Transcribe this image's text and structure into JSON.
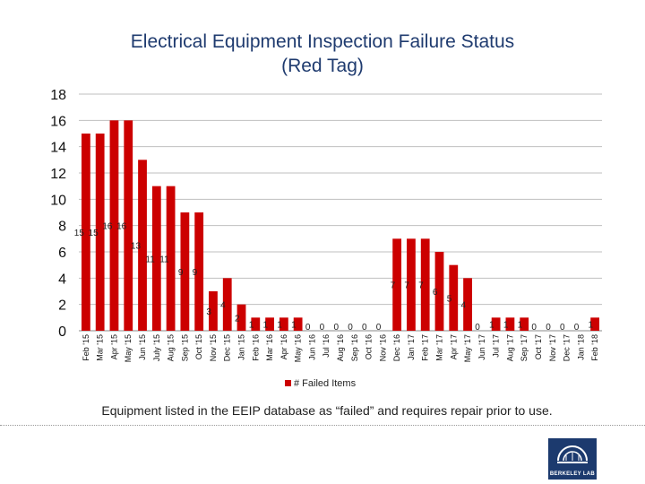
{
  "title_lines": [
    "Electrical Equipment Inspection Failure Status",
    "(Red Tag)"
  ],
  "footer_note": "Equipment listed in the EEIP database as “failed” and requires repair prior to use.",
  "logo": {
    "text": "BERKELEY LAB",
    "icon": "berkeley-lab-logo"
  },
  "colors": {
    "bar": "#cc0000",
    "title": "#1f3b6f",
    "logo_bg": "#1c3a6e",
    "grid": "#bfbfbf"
  },
  "chart_data": {
    "type": "bar",
    "title": "Electrical Equipment Inspection Failure Status (Red Tag)",
    "categories": [
      "Feb '15",
      "Mar '15",
      "Apr '15",
      "May '15",
      "Jun '15",
      "July '15",
      "Aug '15",
      "Sep '15",
      "Oct '15",
      "Nov '15",
      "Dec '15",
      "Jan '15",
      "Feb '16",
      "Mar '16",
      "Apr '16",
      "May '16",
      "Jun '16",
      "Jul '16",
      "Aug '16",
      "Sep '16",
      "Oct '16",
      "Nov '16",
      "Dec '16",
      "Jan '17",
      "Feb '17",
      "Mar '17",
      "Apr '17",
      "May '17",
      "Jun '17",
      "Jul '17",
      "Aug '17",
      "Sep '17",
      "Oct '17",
      "Nov '17",
      "Dec '17",
      "Jan '18",
      "Feb '18"
    ],
    "series": [
      {
        "name": "# Failed Items",
        "values": [
          15,
          15,
          16,
          16,
          13,
          11,
          11,
          9,
          9,
          3,
          4,
          2,
          1,
          1,
          1,
          1,
          0,
          0,
          0,
          0,
          0,
          0,
          7,
          7,
          7,
          6,
          5,
          4,
          0,
          1,
          1,
          1,
          0,
          0,
          0,
          0,
          1
        ]
      }
    ],
    "ylim": [
      0,
      18
    ],
    "yticks": [
      "0",
      "2",
      "4",
      "6",
      "8",
      "10",
      "12",
      "14",
      "16",
      "18"
    ],
    "grid": true,
    "legend_position": "bottom"
  }
}
